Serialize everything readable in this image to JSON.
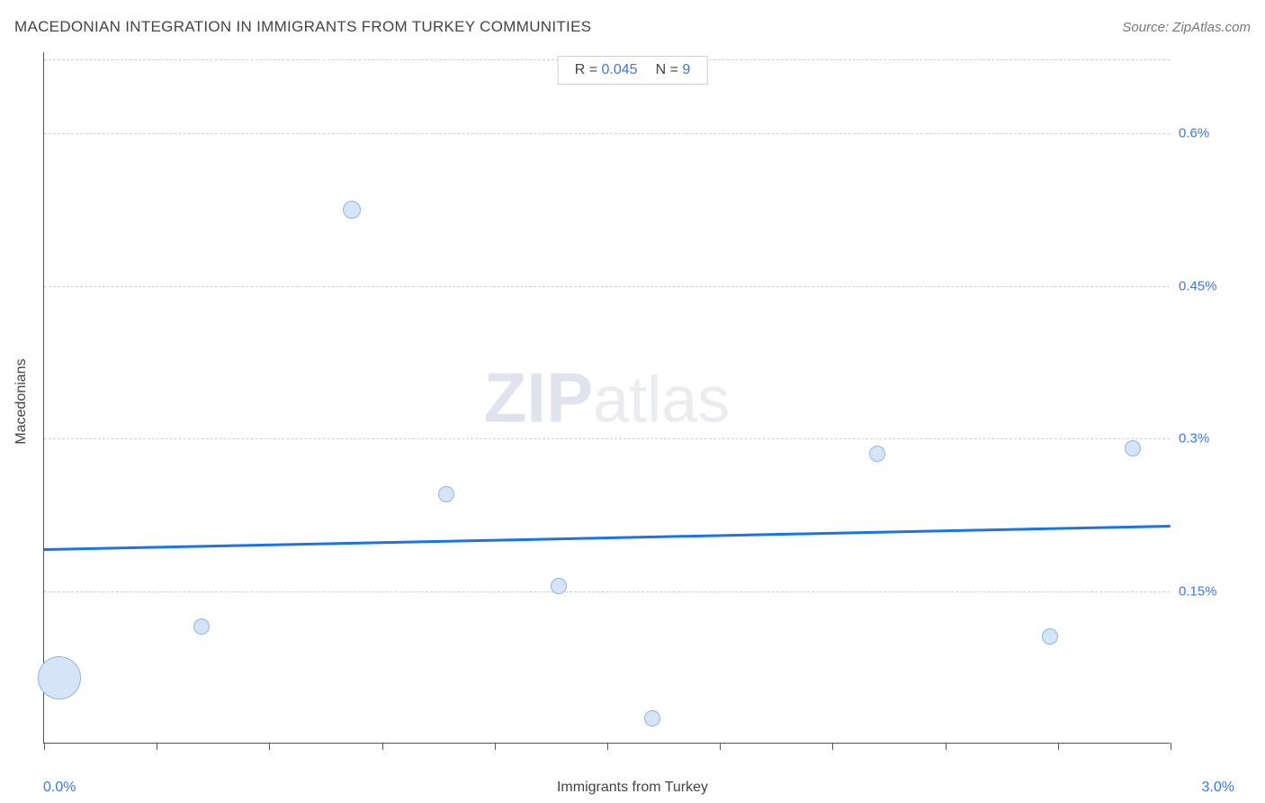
{
  "header": {
    "title": "MACEDONIAN INTEGRATION IN IMMIGRANTS FROM TURKEY COMMUNITIES",
    "source_prefix": "Source: ",
    "source_name": "ZipAtlas.com"
  },
  "chart": {
    "type": "scatter",
    "x_label": "Immigrants from Turkey",
    "y_label": "Macedonians",
    "x_min_label": "0.0%",
    "x_max_label": "3.0%",
    "background_color": "#ffffff",
    "grid_color": "#d0d0d0",
    "axis_color": "#555555",
    "tick_label_color": "#3b78e7",
    "stats": {
      "r_label": "R = ",
      "r_value": "0.045",
      "n_label": "N = ",
      "n_value": "9"
    },
    "xlim": [
      0.0,
      3.0
    ],
    "ylim": [
      0.0,
      0.68
    ],
    "x_ticks": [
      0.0,
      0.3,
      0.6,
      0.9,
      1.2,
      1.5,
      1.8,
      2.1,
      2.4,
      2.7,
      3.0
    ],
    "y_ticks": [
      {
        "v": 0.15,
        "label": "0.15%"
      },
      {
        "v": 0.3,
        "label": "0.3%"
      },
      {
        "v": 0.45,
        "label": "0.45%"
      },
      {
        "v": 0.6,
        "label": "0.6%"
      }
    ],
    "bubble_fill": "#d6e4f7",
    "bubble_stroke": "#8fb4e8",
    "points": [
      {
        "x": 0.04,
        "y": 0.065,
        "r": 24
      },
      {
        "x": 0.42,
        "y": 0.115,
        "r": 9
      },
      {
        "x": 0.82,
        "y": 0.525,
        "r": 10
      },
      {
        "x": 1.07,
        "y": 0.245,
        "r": 9
      },
      {
        "x": 1.37,
        "y": 0.155,
        "r": 9
      },
      {
        "x": 1.62,
        "y": 0.025,
        "r": 9
      },
      {
        "x": 2.22,
        "y": 0.285,
        "r": 9
      },
      {
        "x": 2.68,
        "y": 0.105,
        "r": 9
      },
      {
        "x": 2.9,
        "y": 0.29,
        "r": 9
      }
    ],
    "regression": {
      "color": "#1a73e8",
      "width": 3,
      "y_at_xmin": 0.192,
      "y_at_xmax": 0.215
    },
    "watermark": {
      "bold": "ZIP",
      "rest": "atlas"
    }
  }
}
